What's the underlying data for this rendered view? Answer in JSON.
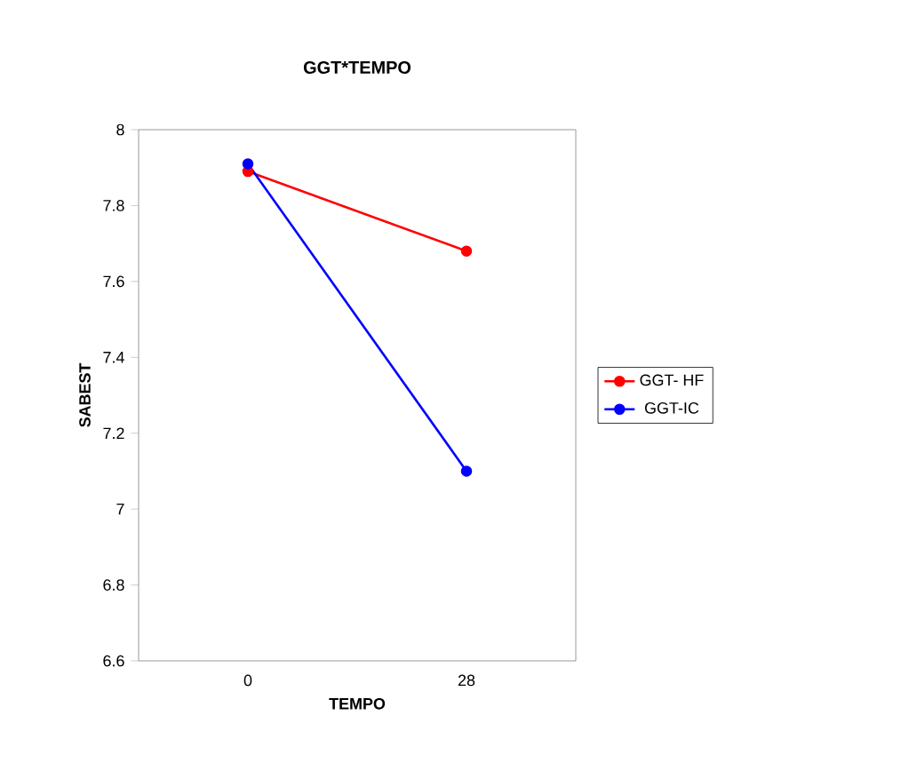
{
  "chart_data": {
    "type": "line",
    "title": "GGT*TEMPO",
    "xlabel": "TEMPO",
    "ylabel": "SABEST",
    "categories": [
      "0",
      "28"
    ],
    "series": [
      {
        "name": "GGT- HF",
        "color": "#ff0000",
        "values": [
          7.89,
          7.68
        ]
      },
      {
        "name": "GGT-IC",
        "color": "#0000ff",
        "values": [
          7.91,
          7.1
        ]
      }
    ],
    "ylim": [
      6.6,
      8
    ],
    "yticks": [
      6.6,
      6.8,
      7,
      7.2,
      7.4,
      7.6,
      7.8,
      8
    ],
    "marker": "circle",
    "legend": "right",
    "grid": false
  }
}
